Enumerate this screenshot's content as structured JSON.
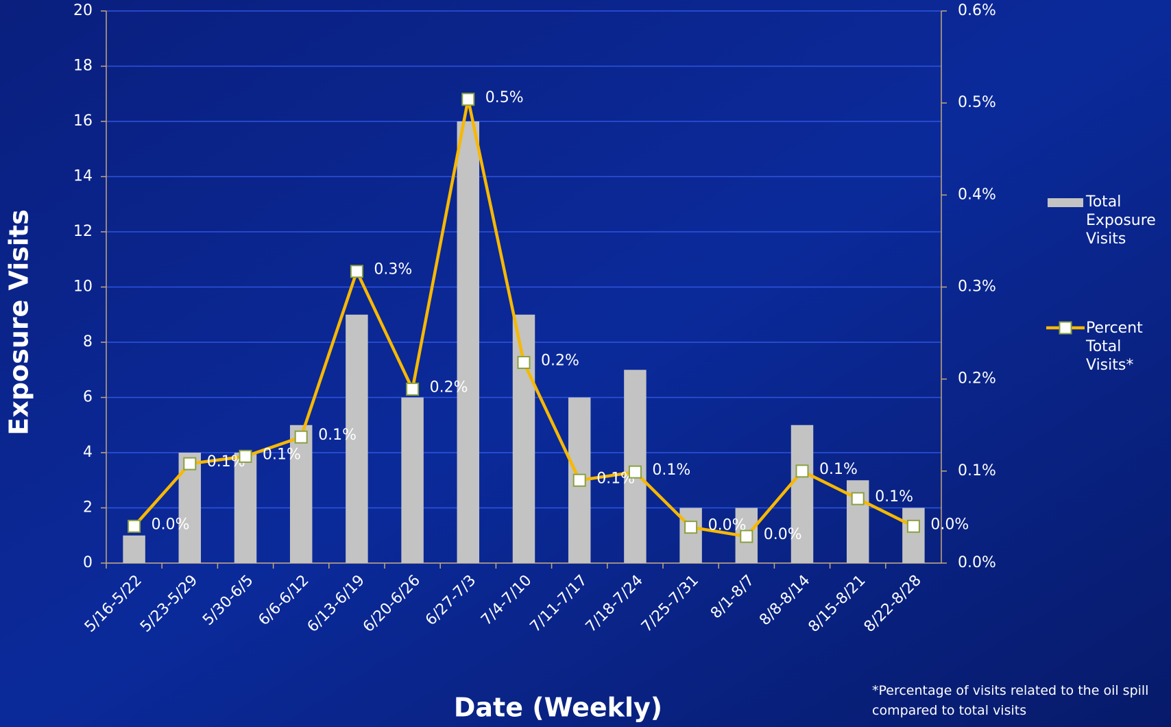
{
  "chart_data": {
    "type": "bar",
    "y_label": "Exposure Visits",
    "x_label": "Date (Weekly)",
    "footnote": "*Percentage of visits related to the oil spill compared to total visits",
    "categories": [
      "5/16-5/22",
      "5/23-5/29",
      "5/30-6/5",
      "6/6-6/12",
      "6/13-6/19",
      "6/20-6/26",
      "6/27-7/3",
      "7/4-7/10",
      "7/11-7/17",
      "7/18-7/24",
      "7/25-7/31",
      "8/1-8/7",
      "8/8-8/14",
      "8/15-8/21",
      "8/22-8/28"
    ],
    "series": [
      {
        "name": "Total Exposure Visits",
        "type": "bar",
        "color": "#c3c3c3",
        "values": [
          1,
          4,
          4,
          5,
          9,
          6,
          16,
          9,
          6,
          7,
          2,
          2,
          5,
          3,
          2
        ]
      },
      {
        "name": "Percent Total Visits*",
        "type": "line",
        "axis": "y2",
        "color": "#f7b800",
        "marker_color": "#8aa040",
        "values": [
          0.04,
          0.108,
          0.116,
          0.137,
          0.317,
          0.189,
          0.504,
          0.218,
          0.09,
          0.099,
          0.039,
          0.029,
          0.1,
          0.07,
          0.04
        ],
        "value_labels": [
          "0.0%",
          "0.1%",
          "0.1%",
          "0.1%",
          "0.3%",
          "0.2%",
          "0.5%",
          "0.2%",
          "0.1%",
          "0.1%",
          "0.0%",
          "0.0%",
          "0.1%",
          "0.1%",
          "0.0%"
        ]
      }
    ],
    "ylim": [
      0,
      20
    ],
    "yticks": [
      0,
      2,
      4,
      6,
      8,
      10,
      12,
      14,
      16,
      18,
      20
    ],
    "y2lim": [
      0,
      0.6
    ],
    "y2ticks": [
      {
        "value": 0,
        "label": "0.0%"
      },
      {
        "value": 0.1,
        "label": "0.1%"
      },
      {
        "value": 0.2,
        "label": "0.2%"
      },
      {
        "value": 0.3,
        "label": "0.3%"
      },
      {
        "value": 0.4,
        "label": "0.4%"
      },
      {
        "value": 0.5,
        "label": "0.5%"
      },
      {
        "value": 0.6,
        "label": "0.6%"
      }
    ],
    "grid": true
  }
}
